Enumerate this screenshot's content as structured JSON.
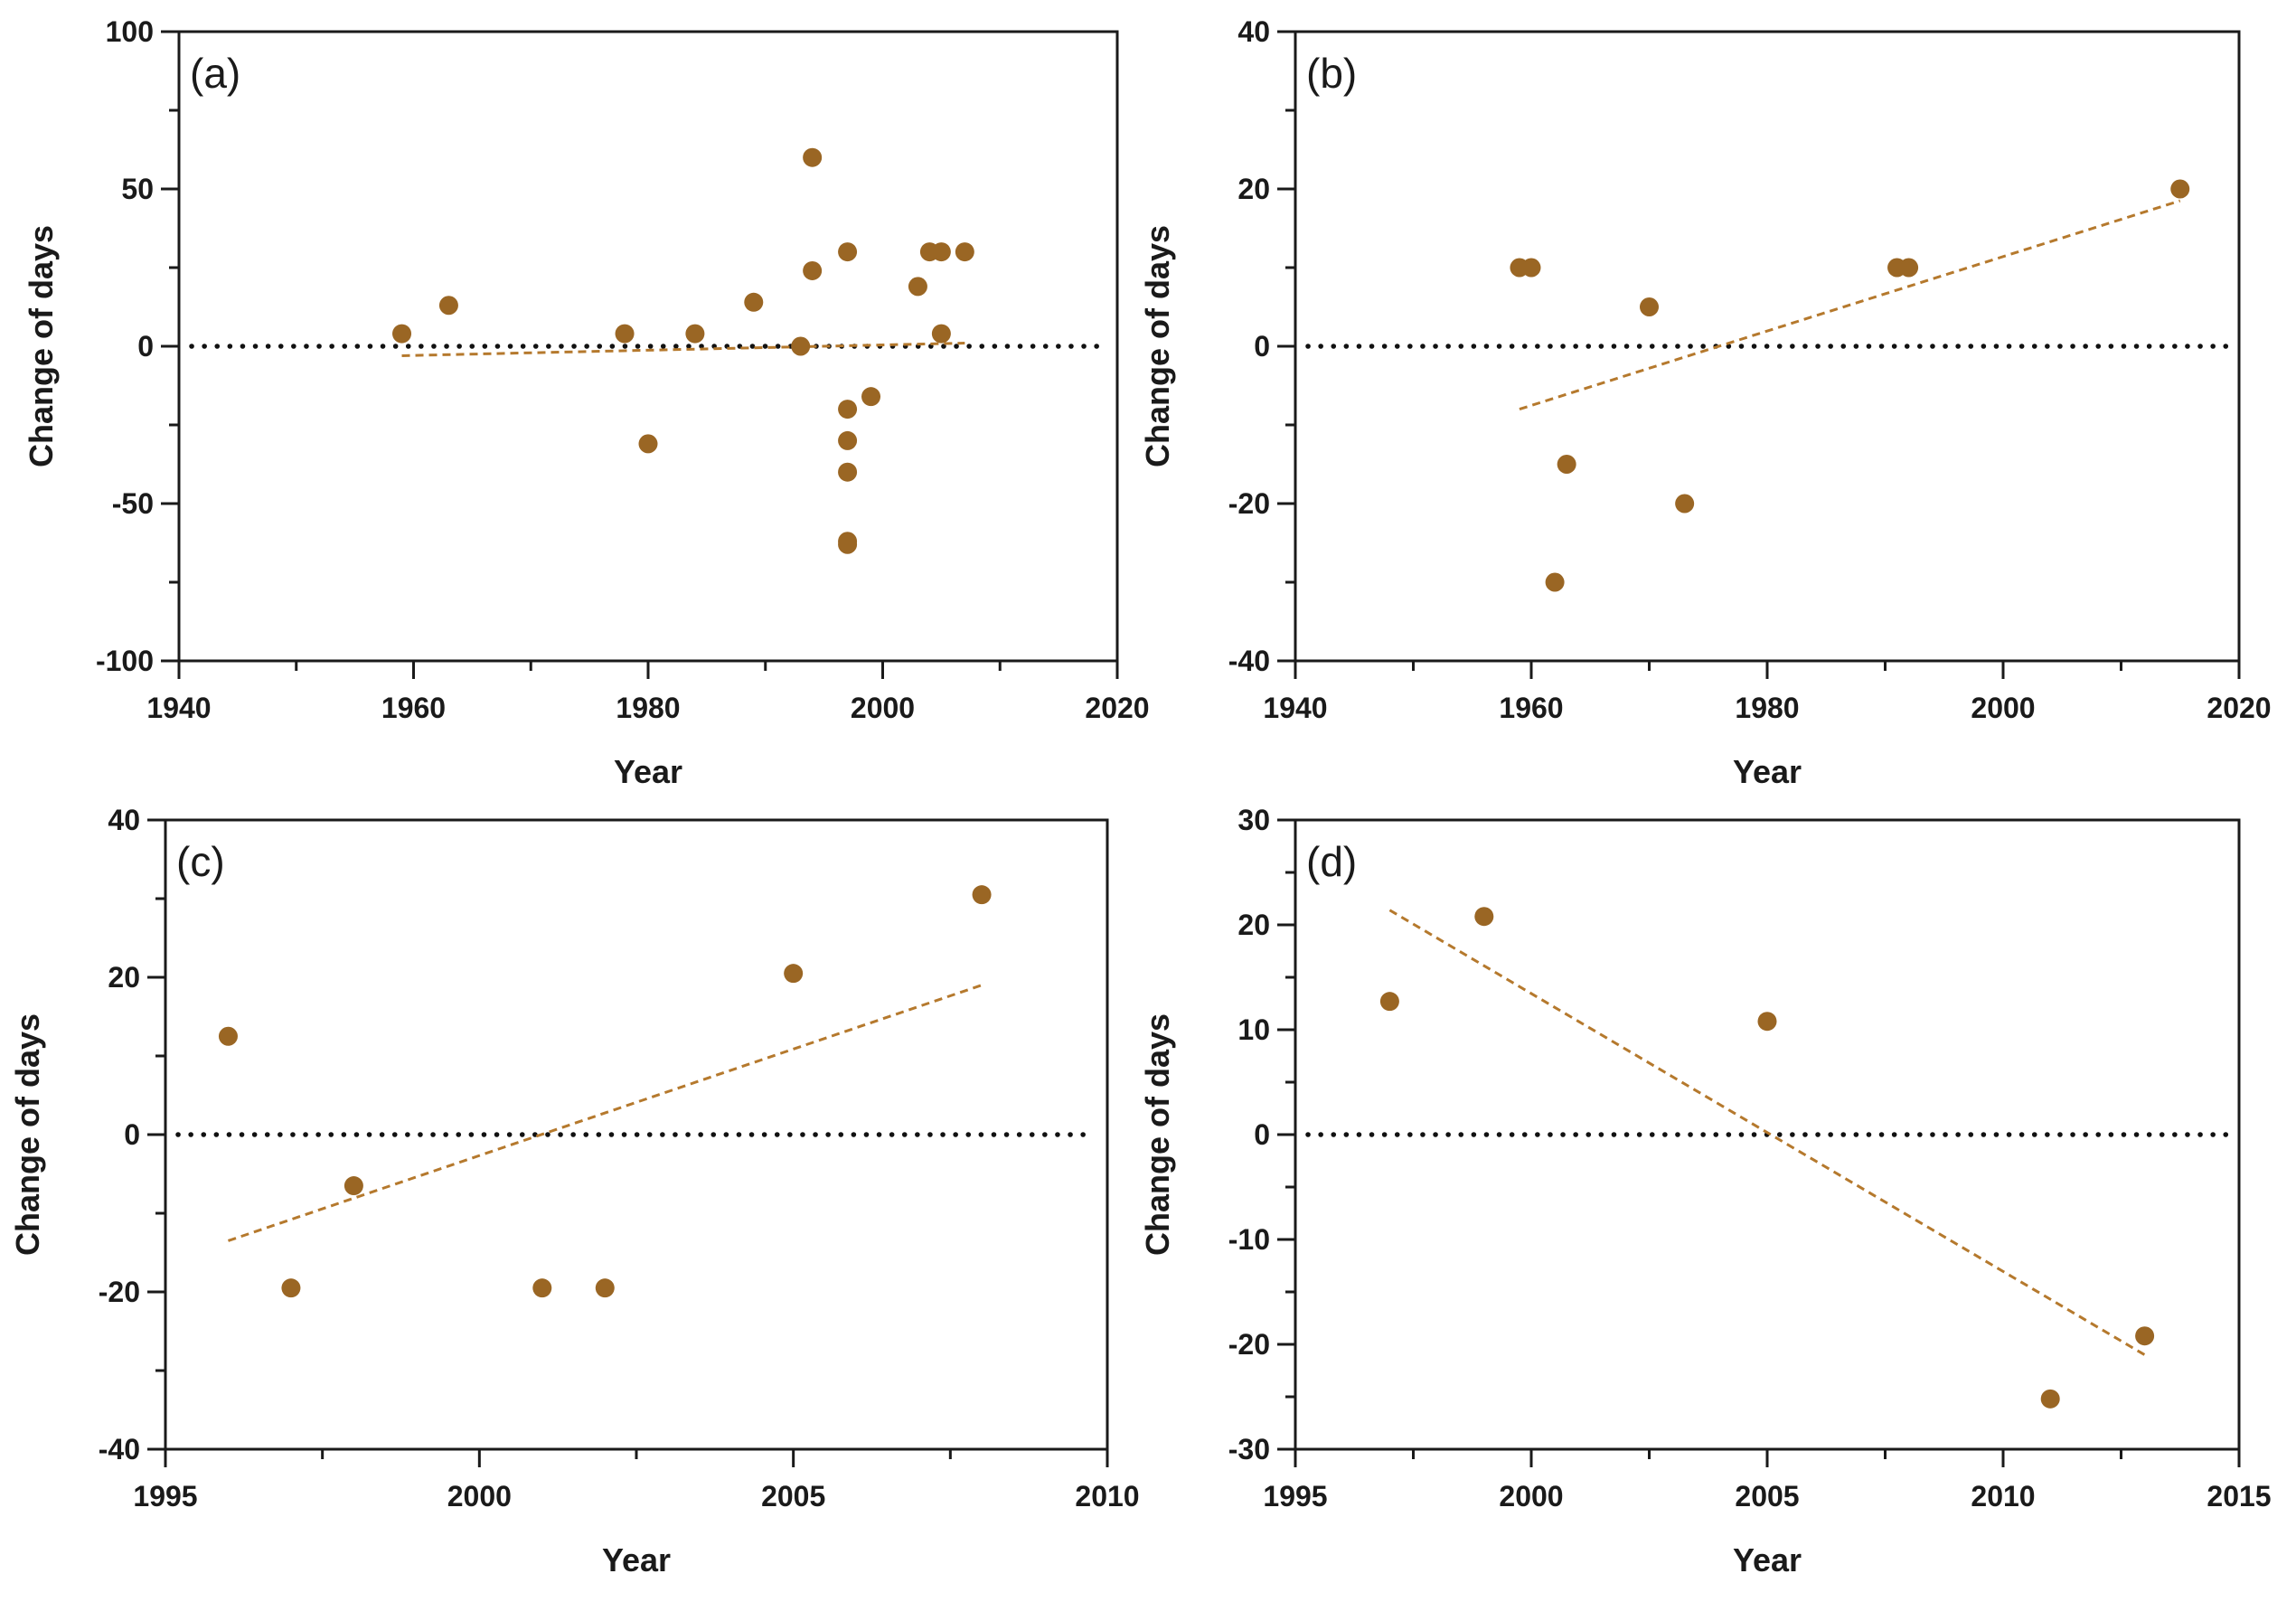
{
  "colors": {
    "points": "#9a6624",
    "trend": "#b5792d",
    "axis": "#1a1a1a",
    "zero_line": "#111111"
  },
  "chart_data": [
    {
      "type": "scatter",
      "panel_label": "(a)",
      "xlabel": "Year",
      "ylabel": "Change of days",
      "xlim": [
        1940,
        2020
      ],
      "ylim": [
        -100,
        100
      ],
      "xticks": [
        1940,
        1960,
        1980,
        2000,
        2020
      ],
      "yticks": [
        -100,
        -50,
        0,
        50,
        100
      ],
      "x_minor_step": 10,
      "y_minor_step": 25,
      "zero_line": true,
      "points": [
        {
          "x": 1959,
          "y": 4
        },
        {
          "x": 1963,
          "y": 13
        },
        {
          "x": 1978,
          "y": 4
        },
        {
          "x": 1980,
          "y": -31
        },
        {
          "x": 1984,
          "y": 4
        },
        {
          "x": 1989,
          "y": 14
        },
        {
          "x": 1993,
          "y": 0
        },
        {
          "x": 1994,
          "y": 60
        },
        {
          "x": 1994,
          "y": 24
        },
        {
          "x": 1997,
          "y": 30
        },
        {
          "x": 1997,
          "y": -20
        },
        {
          "x": 1997,
          "y": -30
        },
        {
          "x": 1997,
          "y": -40
        },
        {
          "x": 1997,
          "y": -62
        },
        {
          "x": 1997,
          "y": -63
        },
        {
          "x": 1999,
          "y": -16
        },
        {
          "x": 2003,
          "y": 19
        },
        {
          "x": 2004,
          "y": 30
        },
        {
          "x": 2005,
          "y": 30
        },
        {
          "x": 2005,
          "y": 4
        },
        {
          "x": 2007,
          "y": 30
        }
      ],
      "trend": {
        "x": [
          1959,
          2007
        ],
        "y": [
          -3,
          1
        ]
      }
    },
    {
      "type": "scatter",
      "panel_label": "(b)",
      "xlabel": "Year",
      "ylabel": "Change of days",
      "xlim": [
        1940,
        2020
      ],
      "ylim": [
        -40,
        40
      ],
      "xticks": [
        1940,
        1960,
        1980,
        2000,
        2020
      ],
      "yticks": [
        -40,
        -20,
        0,
        20,
        40
      ],
      "x_minor_step": 10,
      "y_minor_step": 10,
      "zero_line": true,
      "points": [
        {
          "x": 1959,
          "y": 10
        },
        {
          "x": 1960,
          "y": 10
        },
        {
          "x": 1962,
          "y": -30
        },
        {
          "x": 1963,
          "y": -15
        },
        {
          "x": 1970,
          "y": 5
        },
        {
          "x": 1973,
          "y": -20
        },
        {
          "x": 1991,
          "y": 10
        },
        {
          "x": 1992,
          "y": 10
        },
        {
          "x": 2015,
          "y": 20
        }
      ],
      "trend": {
        "x": [
          1959,
          2015
        ],
        "y": [
          -8,
          18.5
        ]
      }
    },
    {
      "type": "scatter",
      "panel_label": "(c)",
      "xlabel": "Year",
      "ylabel": "Change of days",
      "xlim": [
        1995,
        2010
      ],
      "ylim": [
        -40,
        40
      ],
      "xticks": [
        1995,
        2000,
        2005,
        2010
      ],
      "yticks": [
        -40,
        -20,
        0,
        20,
        40
      ],
      "x_minor_step": 2.5,
      "y_minor_step": 10,
      "zero_line": true,
      "points": [
        {
          "x": 1996,
          "y": 12.5
        },
        {
          "x": 1997,
          "y": -19.5
        },
        {
          "x": 1998,
          "y": -6.5
        },
        {
          "x": 2001,
          "y": -19.5
        },
        {
          "x": 2002,
          "y": -19.5
        },
        {
          "x": 2005,
          "y": 20.5
        },
        {
          "x": 2008,
          "y": 30.5
        }
      ],
      "trend": {
        "x": [
          1996,
          2008
        ],
        "y": [
          -13.5,
          19
        ]
      }
    },
    {
      "type": "scatter",
      "panel_label": "(d)",
      "xlabel": "Year",
      "ylabel": "Change of days",
      "xlim": [
        1995,
        2015
      ],
      "ylim": [
        -30,
        30
      ],
      "xticks": [
        1995,
        2000,
        2005,
        2010,
        2015
      ],
      "yticks": [
        -30,
        -20,
        -10,
        0,
        10,
        20,
        30
      ],
      "x_minor_step": 2.5,
      "y_minor_step": 5,
      "zero_line": true,
      "points": [
        {
          "x": 1997,
          "y": 12.7
        },
        {
          "x": 1999,
          "y": 20.8
        },
        {
          "x": 2005,
          "y": 10.8
        },
        {
          "x": 2011,
          "y": -25.2
        },
        {
          "x": 2013,
          "y": -19.2
        }
      ],
      "trend": {
        "x": [
          1997,
          2013
        ],
        "y": [
          21.4,
          -21
        ]
      }
    }
  ]
}
